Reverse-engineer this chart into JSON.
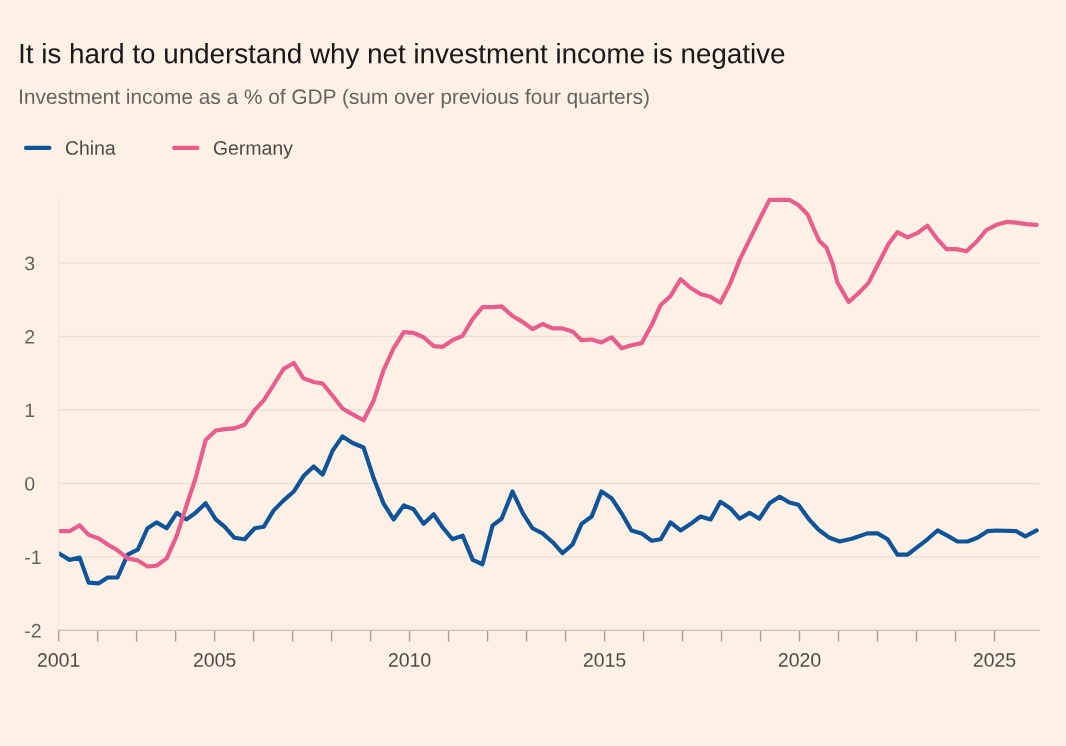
{
  "chart_data": {
    "type": "line",
    "title": "It is hard to understand why net investment income is negative",
    "subtitle": "Investment income as a % of GDP (sum over previous four quarters)",
    "series": [
      {
        "name": "China",
        "color": "#0f5499",
        "x": [
          2001.0,
          2001.28,
          2001.54,
          2001.77,
          2002.03,
          2002.26,
          2002.51,
          2002.77,
          2003.03,
          2003.28,
          2003.51,
          2003.77,
          2004.03,
          2004.28,
          2004.51,
          2004.77,
          2005.03,
          2005.26,
          2005.51,
          2005.77,
          2006.03,
          2006.26,
          2006.51,
          2006.77,
          2007.03,
          2007.28,
          2007.54,
          2007.77,
          2008.03,
          2008.28,
          2008.54,
          2008.82,
          2009.08,
          2009.33,
          2009.59,
          2009.85,
          2010.1,
          2010.36,
          2010.62,
          2010.85,
          2011.1,
          2011.36,
          2011.62,
          2011.87,
          2012.13,
          2012.36,
          2012.64,
          2012.9,
          2013.15,
          2013.41,
          2013.67,
          2013.92,
          2014.18,
          2014.41,
          2014.67,
          2014.92,
          2015.18,
          2015.44,
          2015.69,
          2015.95,
          2016.21,
          2016.44,
          2016.69,
          2016.95,
          2017.21,
          2017.46,
          2017.72,
          2017.97,
          2018.23,
          2018.46,
          2018.72,
          2018.97,
          2019.23,
          2019.49,
          2019.74,
          2019.97,
          2020.26,
          2020.49,
          2020.77,
          2021.03,
          2021.36,
          2021.74,
          2022.0,
          2022.26,
          2022.51,
          2022.77,
          2023.28,
          2023.54,
          2023.79,
          2024.05,
          2024.31,
          2024.56,
          2024.82,
          2025.05,
          2025.56,
          2025.79,
          2026.08
        ],
        "values": [
          -0.95,
          -1.04,
          -1.01,
          -1.35,
          -1.36,
          -1.28,
          -1.28,
          -0.97,
          -0.9,
          -0.61,
          -0.53,
          -0.61,
          -0.4,
          -0.49,
          -0.4,
          -0.27,
          -0.49,
          -0.59,
          -0.74,
          -0.76,
          -0.61,
          -0.59,
          -0.37,
          -0.23,
          -0.11,
          0.1,
          0.23,
          0.12,
          0.45,
          0.64,
          0.55,
          0.49,
          0.07,
          -0.27,
          -0.49,
          -0.3,
          -0.35,
          -0.55,
          -0.42,
          -0.6,
          -0.76,
          -0.71,
          -1.04,
          -1.1,
          -0.57,
          -0.48,
          -0.11,
          -0.4,
          -0.61,
          -0.68,
          -0.8,
          -0.95,
          -0.83,
          -0.55,
          -0.45,
          -0.11,
          -0.2,
          -0.41,
          -0.64,
          -0.68,
          -0.78,
          -0.76,
          -0.53,
          -0.64,
          -0.55,
          -0.45,
          -0.49,
          -0.25,
          -0.34,
          -0.48,
          -0.4,
          -0.48,
          -0.27,
          -0.18,
          -0.26,
          -0.29,
          -0.5,
          -0.63,
          -0.74,
          -0.79,
          -0.75,
          -0.68,
          -0.68,
          -0.76,
          -0.97,
          -0.97,
          -0.76,
          -0.64,
          -0.71,
          -0.79,
          -0.79,
          -0.74,
          -0.65,
          -0.64,
          -0.65,
          -0.72,
          -0.64
        ]
      },
      {
        "name": "Germany",
        "color": "#e95d8c",
        "x": [
          2001.0,
          2001.28,
          2001.54,
          2001.77,
          2002.03,
          2002.26,
          2002.51,
          2002.77,
          2003.03,
          2003.28,
          2003.51,
          2003.77,
          2004.03,
          2004.28,
          2004.51,
          2004.77,
          2005.03,
          2005.26,
          2005.51,
          2005.77,
          2006.03,
          2006.26,
          2006.51,
          2006.77,
          2007.03,
          2007.28,
          2007.54,
          2007.77,
          2008.03,
          2008.28,
          2008.54,
          2008.82,
          2009.08,
          2009.33,
          2009.59,
          2009.85,
          2010.1,
          2010.36,
          2010.62,
          2010.85,
          2011.1,
          2011.36,
          2011.62,
          2011.87,
          2012.13,
          2012.36,
          2012.64,
          2012.9,
          2013.15,
          2013.41,
          2013.67,
          2013.92,
          2014.18,
          2014.41,
          2014.67,
          2014.92,
          2015.18,
          2015.44,
          2015.69,
          2015.95,
          2016.21,
          2016.44,
          2016.69,
          2016.95,
          2017.21,
          2017.46,
          2017.72,
          2017.97,
          2018.23,
          2018.46,
          2018.72,
          2018.97,
          2019.23,
          2019.49,
          2019.74,
          2019.97,
          2020.21,
          2020.38,
          2020.51,
          2020.69,
          2020.85,
          2020.97,
          2021.26,
          2021.51,
          2021.77,
          2022.03,
          2022.28,
          2022.51,
          2022.77,
          2023.03,
          2023.28,
          2023.51,
          2023.77,
          2024.03,
          2024.28,
          2024.54,
          2024.79,
          2025.05,
          2025.31,
          2025.56,
          2025.82,
          2026.08
        ],
        "values": [
          -0.65,
          -0.65,
          -0.57,
          -0.7,
          -0.75,
          -0.83,
          -0.91,
          -1.02,
          -1.05,
          -1.13,
          -1.12,
          -1.02,
          -0.71,
          -0.3,
          0.07,
          0.59,
          0.72,
          0.74,
          0.75,
          0.8,
          1.0,
          1.13,
          1.34,
          1.56,
          1.64,
          1.43,
          1.38,
          1.36,
          1.19,
          1.02,
          0.94,
          0.86,
          1.13,
          1.54,
          1.84,
          2.06,
          2.05,
          1.99,
          1.87,
          1.86,
          1.95,
          2.01,
          2.24,
          2.4,
          2.4,
          2.41,
          2.28,
          2.2,
          2.1,
          2.17,
          2.11,
          2.11,
          2.07,
          1.95,
          1.96,
          1.92,
          1.99,
          1.84,
          1.88,
          1.91,
          2.16,
          2.43,
          2.55,
          2.78,
          2.66,
          2.58,
          2.54,
          2.46,
          2.73,
          3.04,
          3.32,
          3.59,
          3.86,
          3.86,
          3.86,
          3.79,
          3.66,
          3.45,
          3.3,
          3.21,
          2.99,
          2.74,
          2.47,
          2.59,
          2.73,
          3.0,
          3.26,
          3.42,
          3.35,
          3.41,
          3.51,
          3.34,
          3.19,
          3.19,
          3.16,
          3.29,
          3.45,
          3.52,
          3.56,
          3.55,
          3.53,
          3.52
        ]
      }
    ],
    "xlim": [
      2001,
      2026.15
    ],
    "xticks": [
      2001,
      {
        "value": 2002,
        "label": null
      },
      {
        "value": 2003,
        "label": null
      },
      {
        "value": 2004,
        "label": null
      },
      2005,
      {
        "value": 2006,
        "label": null
      },
      {
        "value": 2007,
        "label": null
      },
      {
        "value": 2008,
        "label": null
      },
      {
        "value": 2009,
        "label": null
      },
      2010,
      {
        "value": 2011,
        "label": null
      },
      {
        "value": 2012,
        "label": null
      },
      {
        "value": 2013,
        "label": null
      },
      {
        "value": 2014,
        "label": null
      },
      2015,
      {
        "value": 2016,
        "label": null
      },
      {
        "value": 2017,
        "label": null
      },
      {
        "value": 2018,
        "label": null
      },
      {
        "value": 2019,
        "label": null
      },
      2020,
      {
        "value": 2021,
        "label": null
      },
      {
        "value": 2022,
        "label": null
      },
      {
        "value": 2023,
        "label": null
      },
      {
        "value": 2024,
        "label": null
      },
      2025
    ],
    "ylim": [
      -2,
      3.9
    ],
    "yticks": [
      -2,
      -1,
      0,
      1,
      2,
      3
    ],
    "grid": "y",
    "legend": "top left",
    "line_style": "solid",
    "marker": "none"
  }
}
